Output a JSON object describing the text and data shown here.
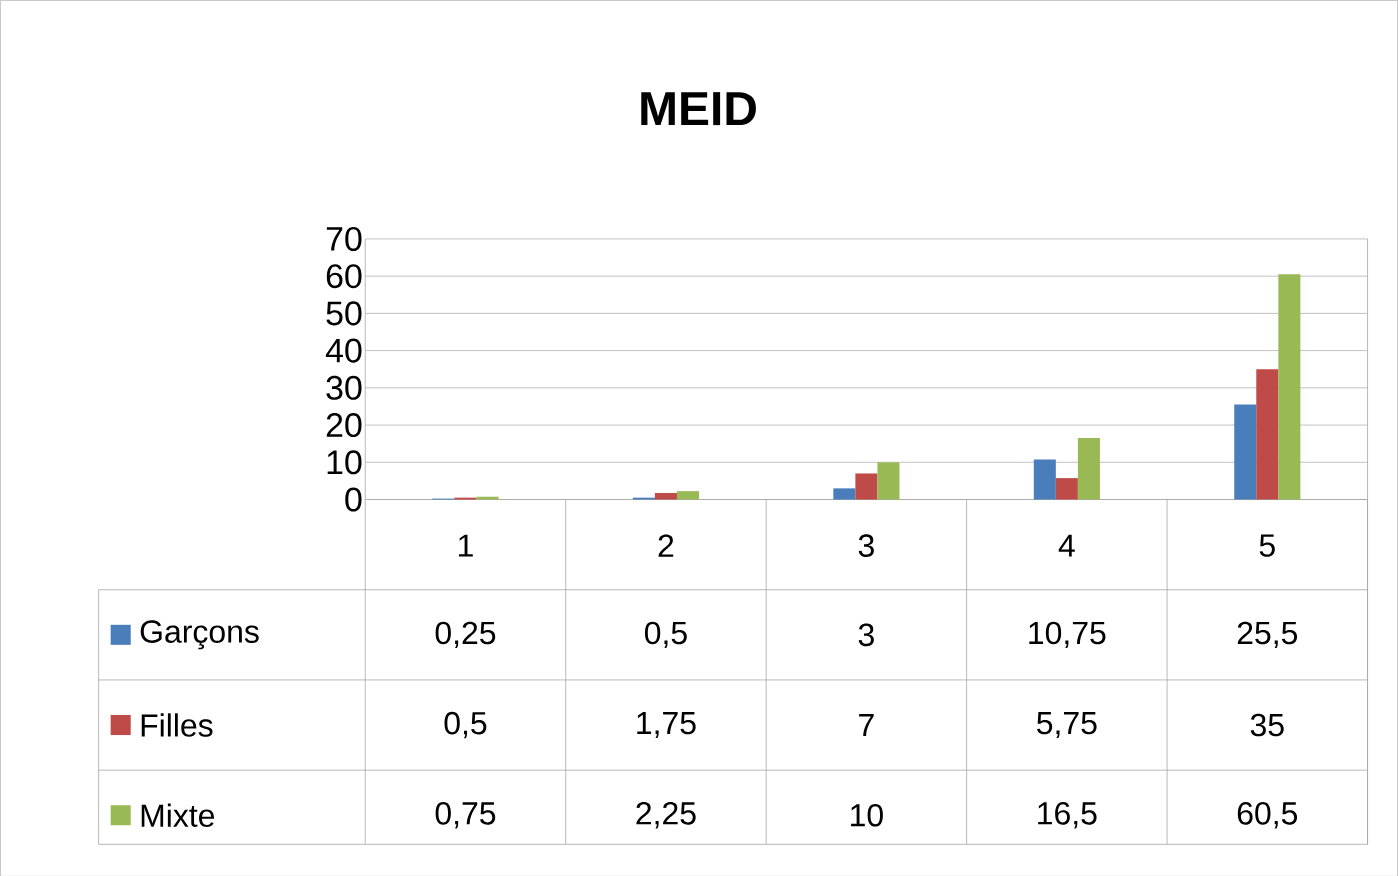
{
  "chart_data": {
    "type": "bar",
    "title": "MEID",
    "categories": [
      "1",
      "2",
      "3",
      "4",
      "5"
    ],
    "series": [
      {
        "name": "Garçons",
        "color": "#4a7ebb",
        "values": [
          0.25,
          0.5,
          3,
          10.75,
          25.5
        ],
        "value_labels": [
          "0,25",
          "0,5",
          "3",
          "10,75",
          "25,5"
        ]
      },
      {
        "name": "Filles",
        "color": "#be4b48",
        "values": [
          0.5,
          1.75,
          7,
          5.75,
          35
        ],
        "value_labels": [
          "0,5",
          "1,75",
          "7",
          "5,75",
          "35"
        ]
      },
      {
        "name": "Mixte",
        "color": "#98b954",
        "values": [
          0.75,
          2.25,
          10,
          16.5,
          60.5
        ],
        "value_labels": [
          "0,75",
          "2,25",
          "10",
          "16,5",
          "60,5"
        ]
      }
    ],
    "ylim": [
      0,
      70
    ],
    "yticks": [
      0,
      10,
      20,
      30,
      40,
      50,
      60,
      70
    ],
    "grid": "y",
    "legend": "left"
  }
}
